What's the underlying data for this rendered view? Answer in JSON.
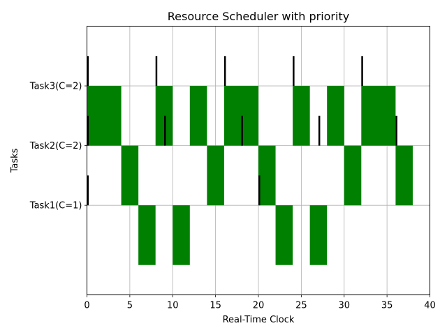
{
  "chart_data": {
    "type": "gantt",
    "title": "Resource Scheduler with priority",
    "xlabel": "Real-Time Clock",
    "ylabel": "Tasks",
    "xlim": [
      0,
      40
    ],
    "ylim": [
      -1.5,
      3.0
    ],
    "grid": true,
    "x_ticks": [
      0,
      5,
      10,
      15,
      20,
      25,
      30,
      35,
      40
    ],
    "tasks": [
      {
        "name": "Task1(C=1)",
        "y": 0,
        "releases": [
          0,
          20
        ],
        "executions": [
          [
            6,
            8
          ],
          [
            10,
            12
          ],
          [
            22,
            24
          ],
          [
            26,
            28
          ]
        ]
      },
      {
        "name": "Task2(C=2)",
        "y": 1,
        "releases": [
          0,
          9,
          18,
          27,
          36
        ],
        "executions": [
          [
            4,
            6
          ],
          [
            14,
            16
          ],
          [
            20,
            22
          ],
          [
            30,
            32
          ],
          [
            36,
            38
          ]
        ]
      },
      {
        "name": "Task3(C=2)",
        "y": 2,
        "releases": [
          0,
          8,
          16,
          24,
          32
        ],
        "executions": [
          [
            0,
            4
          ],
          [
            8,
            10
          ],
          [
            12,
            14
          ],
          [
            16,
            20
          ],
          [
            24,
            26
          ],
          [
            28,
            30
          ],
          [
            32,
            36
          ]
        ]
      }
    ],
    "colors": {
      "execution": "#008000",
      "release": "#000000",
      "grid": "#b0b0b0",
      "axis": "#000000"
    }
  }
}
